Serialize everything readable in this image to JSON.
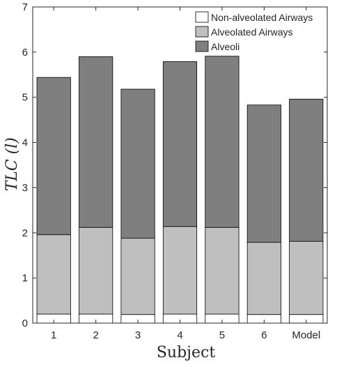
{
  "chart_data": {
    "type": "bar",
    "stacked": true,
    "categories": [
      "1",
      "2",
      "3",
      "4",
      "5",
      "6",
      "Model"
    ],
    "series": [
      {
        "name": "Non-alveolated Airways",
        "color": "#ffffff",
        "values": [
          0.2,
          0.2,
          0.19,
          0.2,
          0.2,
          0.19,
          0.19
        ]
      },
      {
        "name": "Alveolated Airways",
        "color": "#bfbfbf",
        "values": [
          1.76,
          1.92,
          1.69,
          1.94,
          1.92,
          1.6,
          1.62
        ]
      },
      {
        "name": "Alveoli",
        "color": "#7f7f7f",
        "values": [
          3.48,
          3.78,
          3.3,
          3.65,
          3.79,
          3.04,
          3.15
        ]
      }
    ],
    "xlabel": "Subject",
    "ylabel": "TLC (l)",
    "ylim": [
      0,
      7
    ],
    "yticks": [
      0,
      1,
      2,
      3,
      4,
      5,
      6,
      7
    ],
    "grid": false,
    "legend_position": "top-right"
  }
}
